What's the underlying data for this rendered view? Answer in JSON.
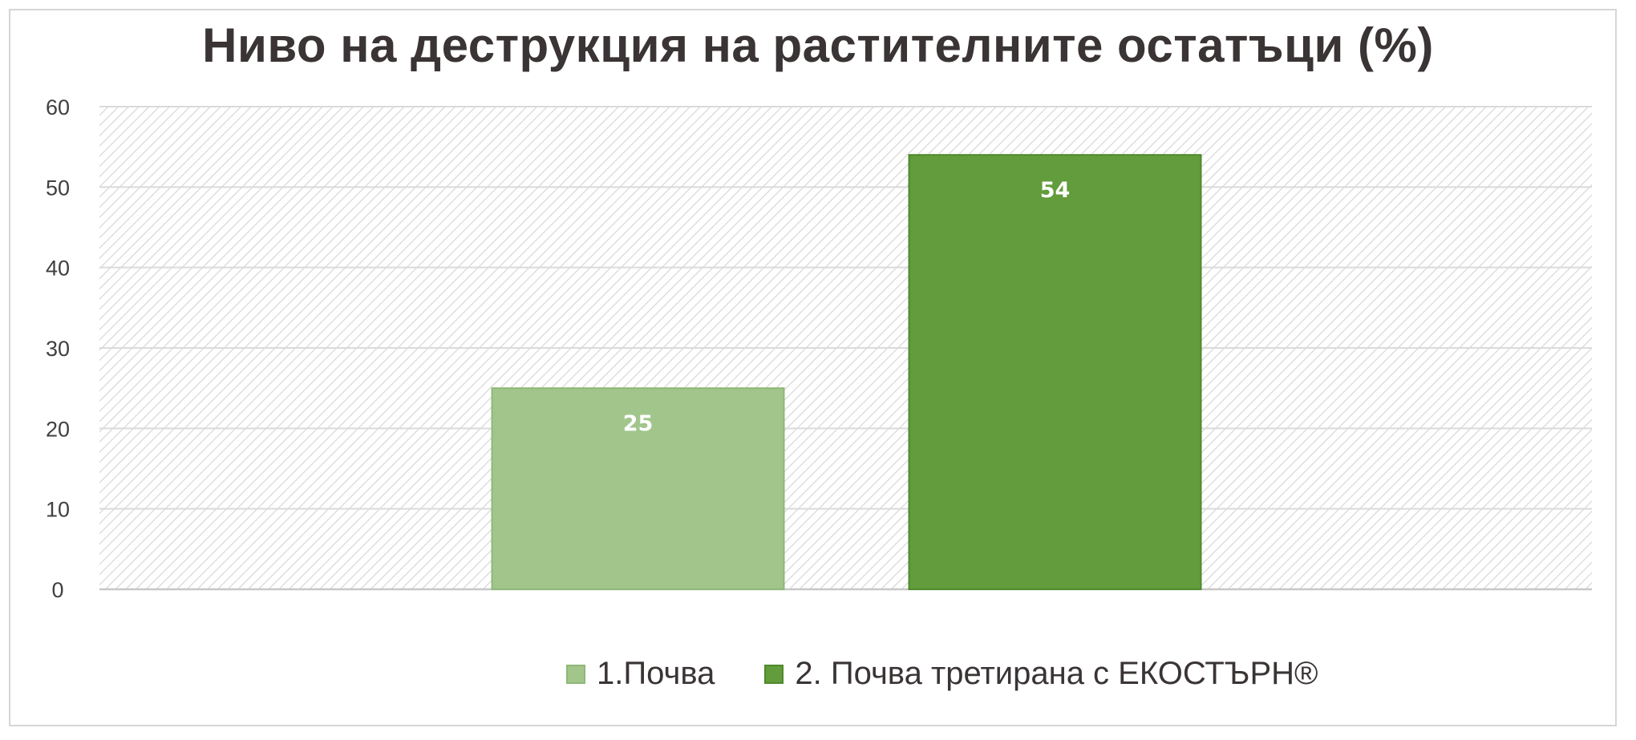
{
  "chart_data": {
    "type": "bar",
    "title": "Ниво на деструкция на растителните остатъци (%)",
    "xlabel": "",
    "ylabel": "",
    "ylim": [
      0,
      60
    ],
    "yticks": [
      "0",
      "10",
      "20",
      "30",
      "40",
      "50",
      "60"
    ],
    "grid": true,
    "legend_position": "bottom",
    "categories": [
      "1.Почва",
      "2. Почва третирана с ЕКОСТЪРН®"
    ],
    "values": [
      25,
      54
    ],
    "data_labels": [
      "25",
      "54"
    ],
    "colors": [
      "#a2c58c",
      "#629c3c"
    ],
    "edge_colors": [
      "#8fb877",
      "#4e8a2c"
    ],
    "background_hatch": true
  },
  "legend": {
    "items": [
      {
        "label": "1.Почва",
        "color": "#a2c58c"
      },
      {
        "label": "2. Почва третирана с ЕКОСТЪРН®",
        "color": "#629c3c"
      }
    ]
  }
}
